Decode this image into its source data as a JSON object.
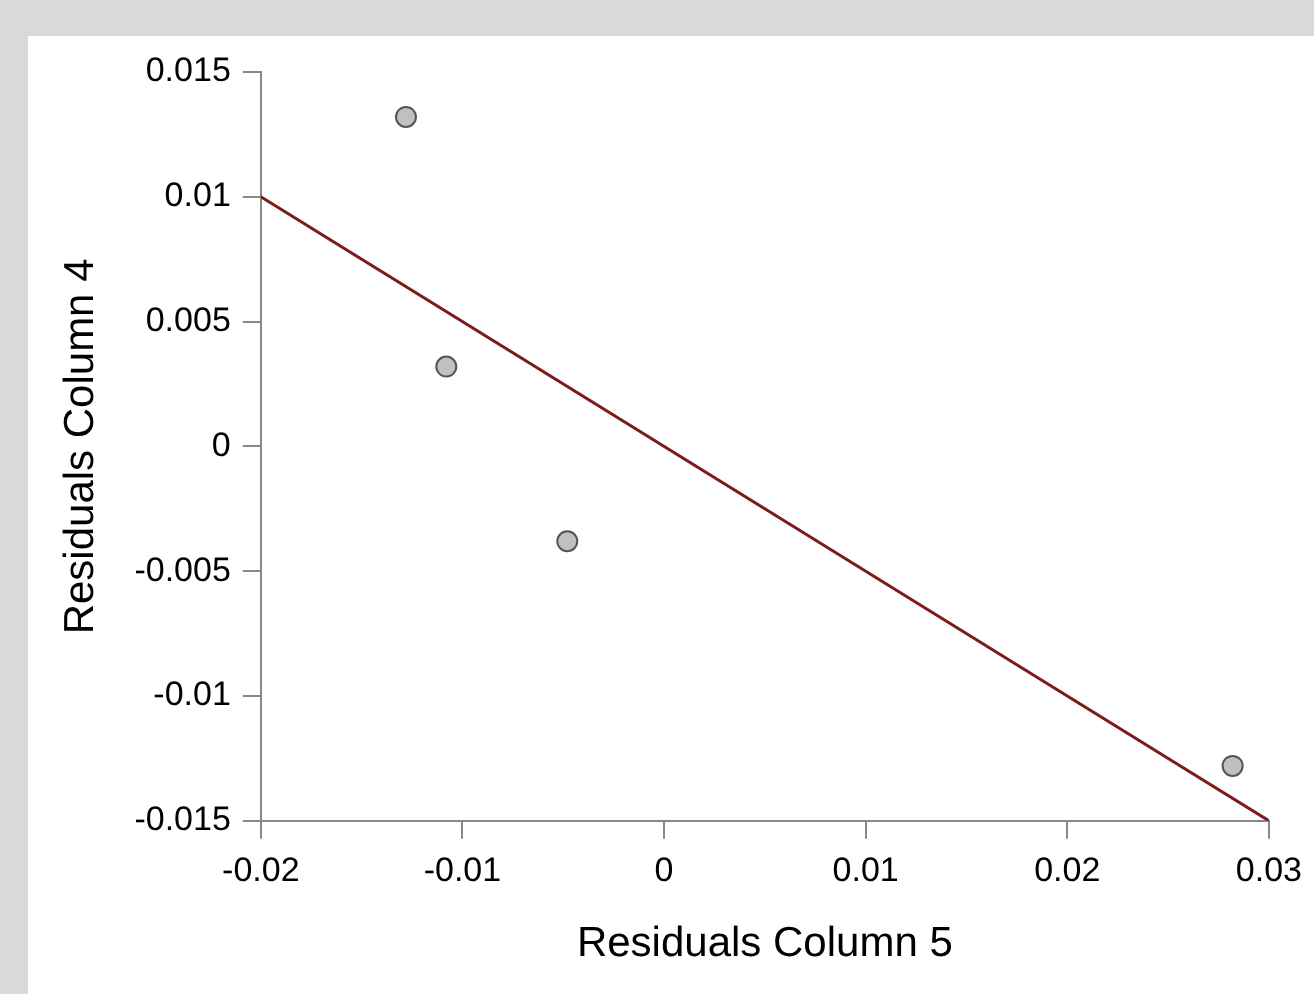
{
  "chart_data": {
    "type": "scatter",
    "xlabel": "Residuals Column 5",
    "ylabel": "Residuals Column 4",
    "series": [
      {
        "type": "scatter",
        "marker": "circle",
        "color": "#c0c0c0",
        "x": [
          -0.0128,
          -0.0108,
          -0.0048,
          0.0282
        ],
        "values": [
          0.0132,
          0.0032,
          -0.0038,
          -0.0128
        ]
      },
      {
        "type": "line",
        "marker": "none",
        "color": "#7b1c1c",
        "x": [
          -0.02,
          0.03
        ],
        "values": [
          0.01,
          -0.015
        ]
      }
    ],
    "xlim": [
      -0.02,
      0.03
    ],
    "xticks": [
      -0.02,
      -0.01,
      0,
      0.01,
      0.02,
      0.03
    ],
    "ylim": [
      -0.015,
      0.015
    ],
    "yticks": [
      -0.015,
      -0.01,
      -0.005,
      0,
      0.005,
      0.01,
      0.015
    ],
    "grid": false,
    "legend": false
  }
}
